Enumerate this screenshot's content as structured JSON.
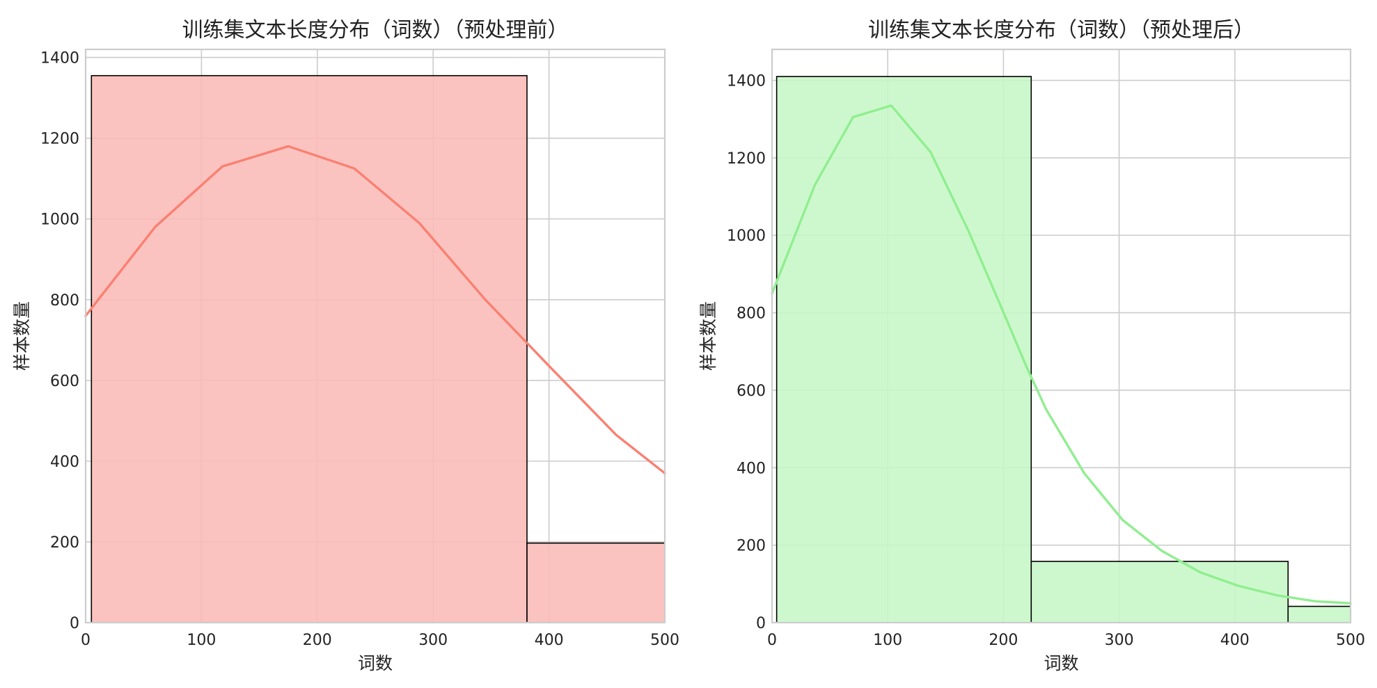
{
  "chart_data": [
    {
      "type": "bar",
      "title": "训练集文本长度分布（词数）（预处理前）",
      "xlabel": "词数",
      "ylabel": "样本数量",
      "xlim": [
        0,
        500
      ],
      "ylim": [
        0,
        1420
      ],
      "xticks": [
        "0",
        "100",
        "200",
        "300",
        "400",
        "500"
      ],
      "yticks": [
        "0",
        "200",
        "400",
        "600",
        "800",
        "1000",
        "1200",
        "1400"
      ],
      "grid": true,
      "legend": "none",
      "colors": {
        "bar_fill": "#fabbb6",
        "bar_edge": "#000000",
        "kde_line": "#fa8072"
      },
      "bins": [
        {
          "start": 5,
          "end": 381,
          "count": 1355
        },
        {
          "start": 381,
          "end": 500,
          "count": 197
        }
      ],
      "kde": {
        "x": [
          0,
          60,
          118,
          175,
          232,
          288,
          345,
          402,
          458,
          500
        ],
        "y": [
          760,
          980,
          1130,
          1180,
          1125,
          990,
          800,
          630,
          465,
          370
        ]
      }
    },
    {
      "type": "bar",
      "title": "训练集文本长度分布（词数）（预处理后）",
      "xlabel": "词数",
      "ylabel": "样本数量",
      "xlim": [
        0,
        500
      ],
      "ylim": [
        0,
        1480
      ],
      "xticks": [
        "0",
        "100",
        "200",
        "300",
        "400",
        "500"
      ],
      "yticks": [
        "0",
        "200",
        "400",
        "600",
        "800",
        "1000",
        "1200",
        "1400"
      ],
      "grid": true,
      "legend": "none",
      "colors": {
        "bar_fill": "#c6f7c6",
        "bar_edge": "#000000",
        "kde_line": "#90ee90"
      },
      "bins": [
        {
          "start": 4,
          "end": 224,
          "count": 1410
        },
        {
          "start": 224,
          "end": 446,
          "count": 158
        },
        {
          "start": 446,
          "end": 500,
          "count": 42
        }
      ],
      "kde": {
        "x": [
          0,
          37,
          70,
          103,
          137,
          170,
          203,
          220,
          237,
          270,
          303,
          337,
          370,
          403,
          437,
          470,
          500
        ],
        "y": [
          850,
          1130,
          1305,
          1335,
          1215,
          1010,
          780,
          660,
          550,
          385,
          265,
          185,
          130,
          95,
          70,
          55,
          50
        ]
      }
    }
  ]
}
